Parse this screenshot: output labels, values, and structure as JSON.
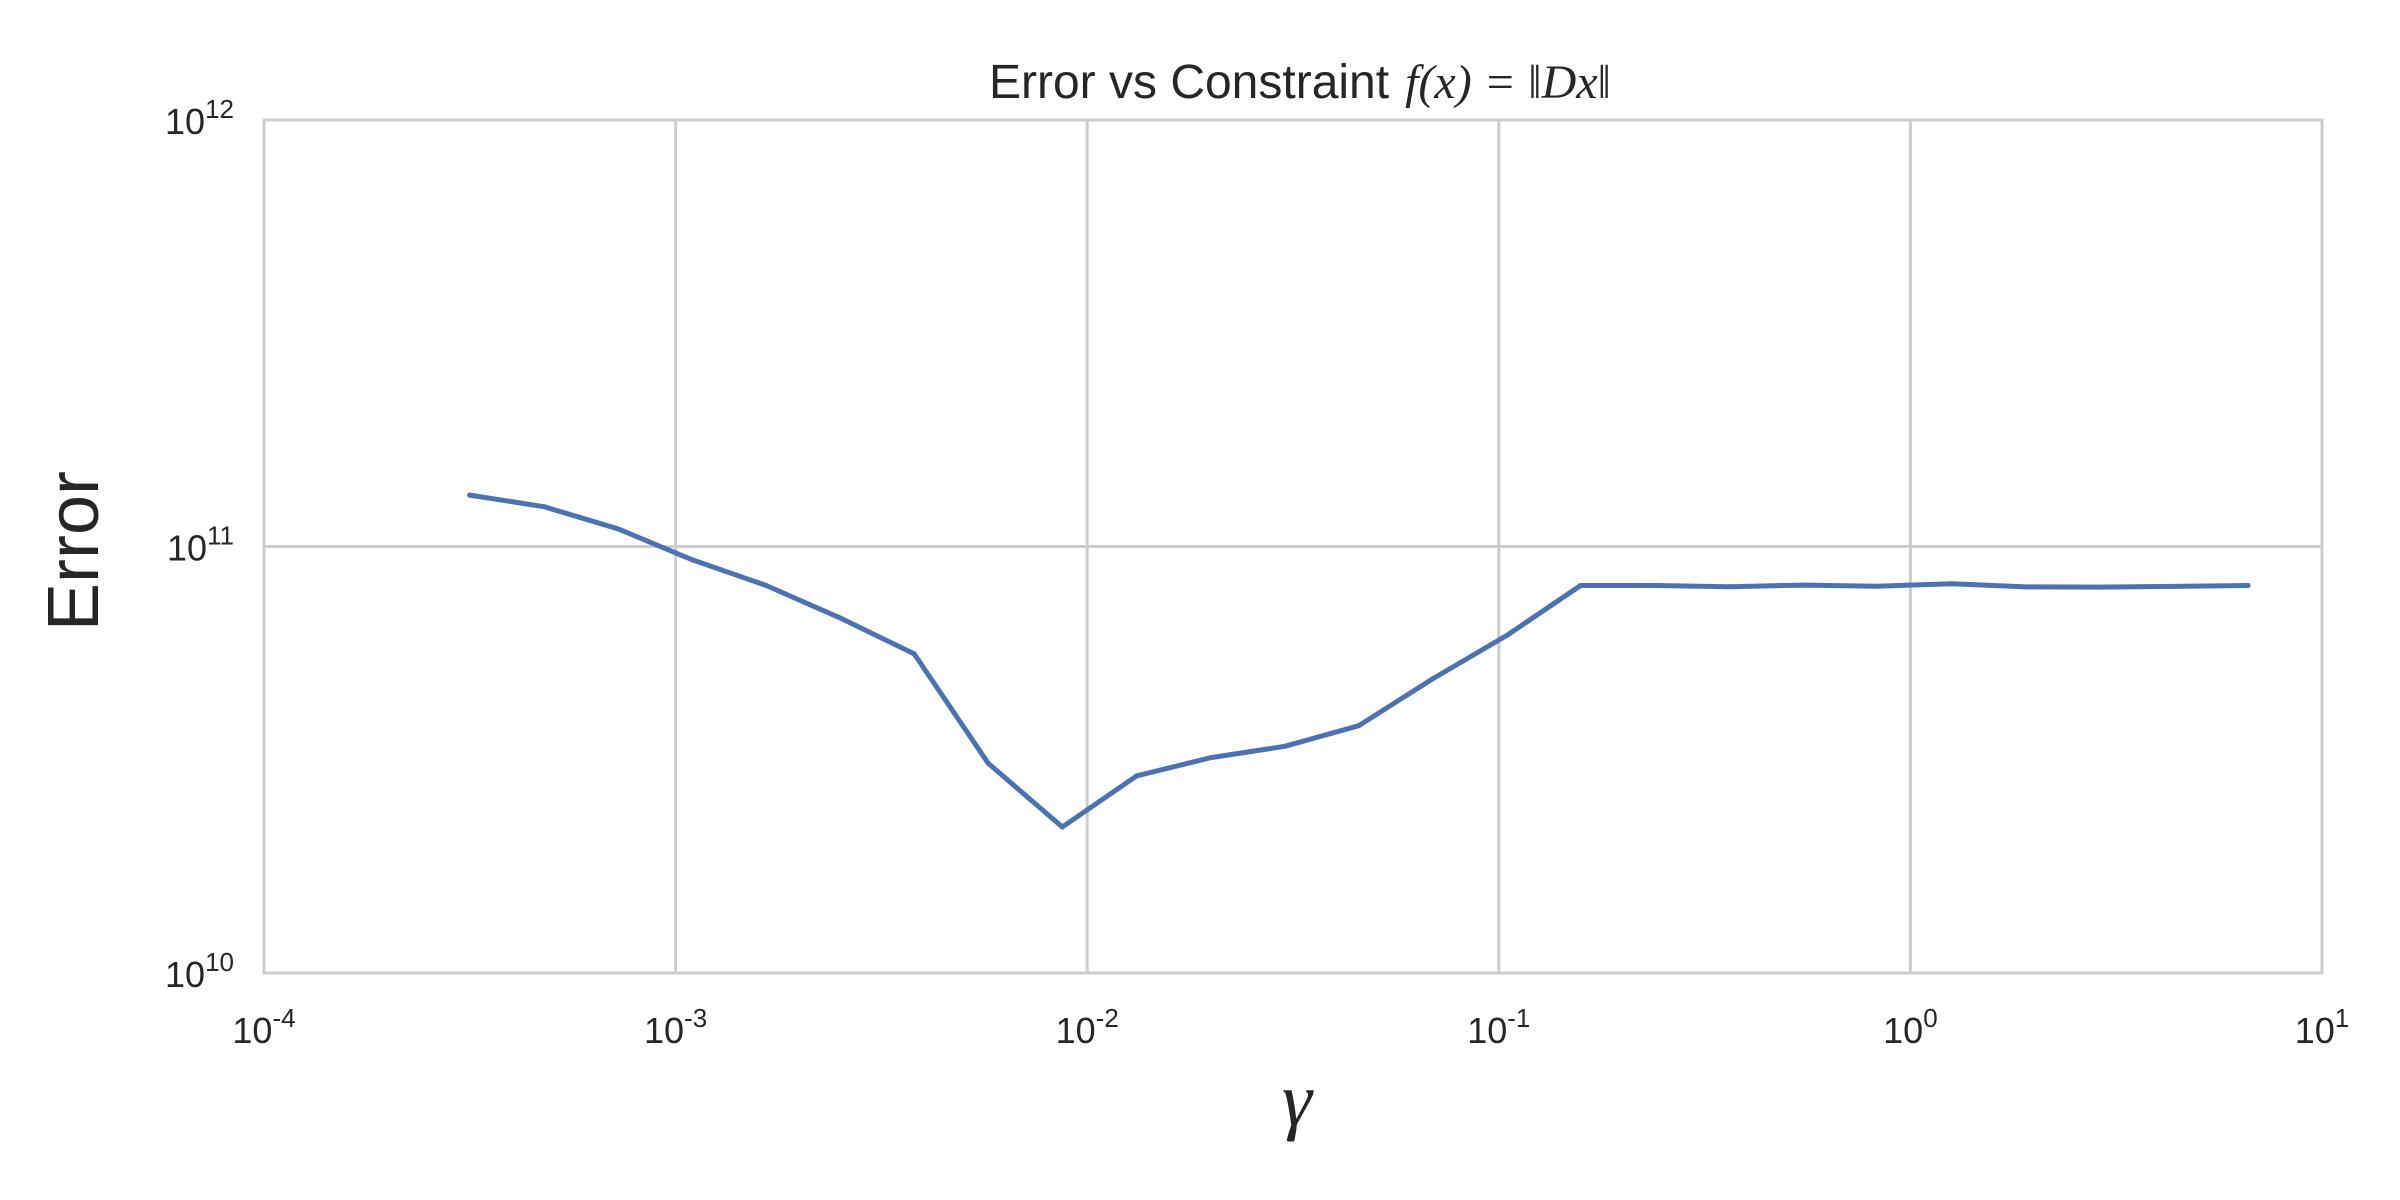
{
  "chart_data": {
    "type": "line",
    "title": "Error vs Constraint",
    "title_math": "f(x) = ‖Dx‖",
    "xlabel": "γ",
    "ylabel": "Error",
    "x_scale": "log",
    "y_scale": "log",
    "xlim": [
      0.0001,
      10
    ],
    "ylim": [
      10000000000,
      1000000000000
    ],
    "x_ticks": [
      {
        "base": "10",
        "exp": "-4"
      },
      {
        "base": "10",
        "exp": "-3"
      },
      {
        "base": "10",
        "exp": "-2"
      },
      {
        "base": "10",
        "exp": "-1"
      },
      {
        "base": "10",
        "exp": "0"
      },
      {
        "base": "10",
        "exp": "1"
      }
    ],
    "y_ticks": [
      {
        "base": "10",
        "exp": "10"
      },
      {
        "base": "10",
        "exp": "11"
      },
      {
        "base": "10",
        "exp": "12"
      }
    ],
    "grid": true,
    "colors": {
      "line": "#4c72b0",
      "grid": "#cccccc",
      "frame": "#cccccc"
    },
    "series": [
      {
        "x": [
          0.000316,
          0.000479,
          0.000724,
          0.0011,
          0.00166,
          0.00251,
          0.0038,
          0.00575,
          0.0087,
          0.0132,
          0.02,
          0.0302,
          0.0457,
          0.0692,
          0.105,
          0.158,
          0.24,
          0.363,
          0.55,
          0.832,
          1.26,
          1.91,
          2.88,
          4.37,
          6.61
        ],
        "y": [
          132000000000,
          124000000000,
          110000000000,
          93000000000,
          81000000000,
          68000000000,
          56000000000,
          31000000000,
          22000000000,
          29000000000,
          32000000000,
          34000000000,
          38000000000,
          49000000000,
          62000000000,
          81000000000,
          81000000000,
          80500000000,
          81200000000,
          80700000000,
          81800000000,
          80400000000,
          80300000000,
          80600000000,
          81000000000
        ]
      }
    ]
  }
}
